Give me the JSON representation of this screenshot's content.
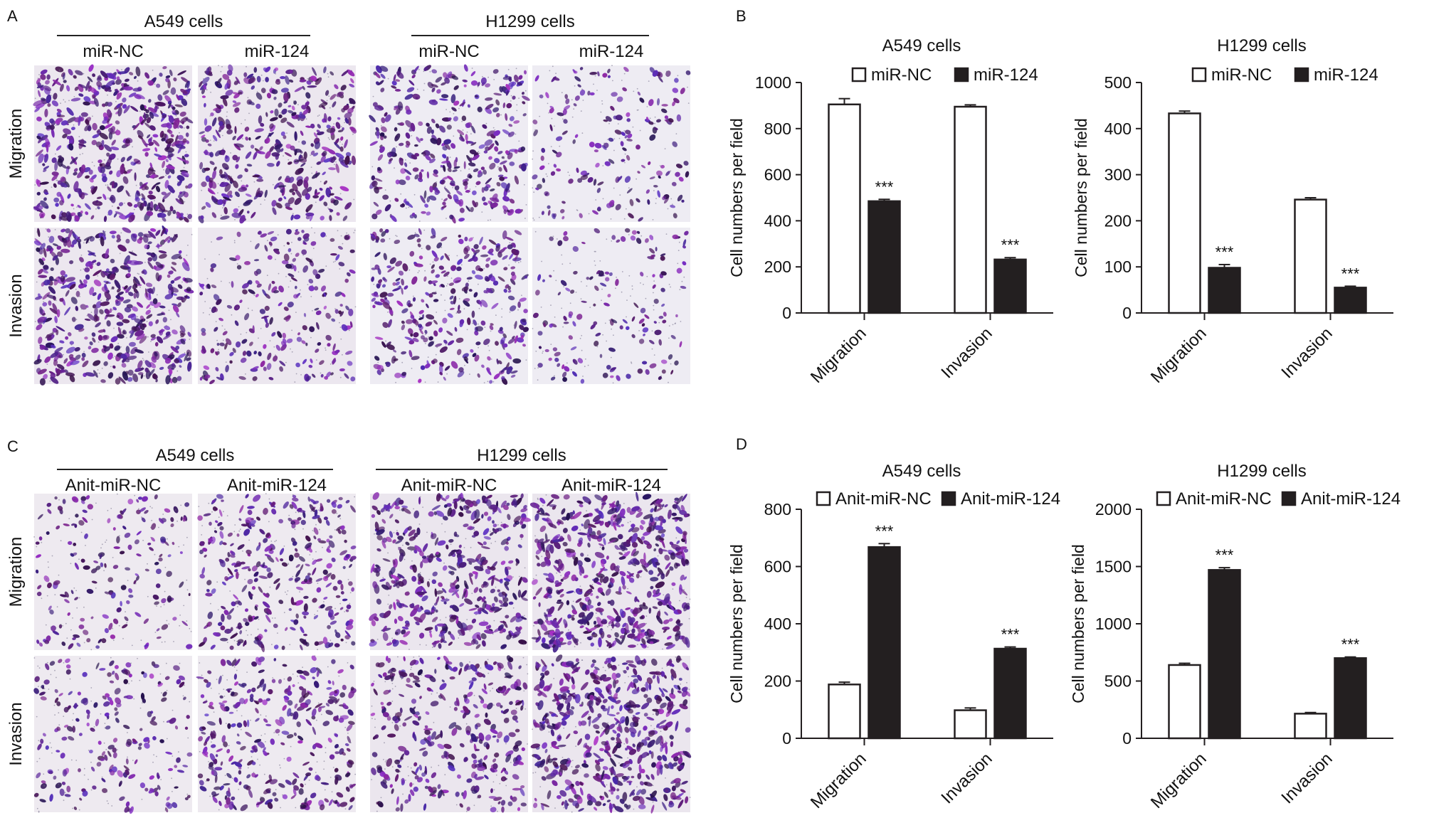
{
  "micro_panels": [
    {
      "letter": "A",
      "groups": [
        {
          "title": "A549 cells",
          "conditions": [
            "miR-NC",
            "miR-124"
          ]
        },
        {
          "title": "H1299 cells",
          "conditions": [
            "miR-NC",
            "miR-124"
          ]
        }
      ],
      "rows": [
        "Migration",
        "Invasion"
      ],
      "stain_density": [
        [
          0.9,
          0.7,
          0.6,
          0.25
        ],
        [
          0.85,
          0.35,
          0.55,
          0.2
        ]
      ]
    },
    {
      "letter": "C",
      "groups": [
        {
          "title": "A549 cells",
          "conditions": [
            "Anit-miR-NC",
            "Anit-miR-124"
          ]
        },
        {
          "title": "H1299 cells",
          "conditions": [
            "Anit-miR-NC",
            "Anit-miR-124"
          ]
        }
      ],
      "rows": [
        "Migration",
        "Invasion"
      ],
      "stain_density": [
        [
          0.25,
          0.55,
          0.75,
          0.95
        ],
        [
          0.3,
          0.5,
          0.55,
          0.85
        ]
      ]
    }
  ],
  "chart_panel_letters": [
    "B",
    "D"
  ],
  "chart_data": [
    {
      "type": "bar",
      "title": "A549 cells",
      "categories": [
        "Migration",
        "Invasion"
      ],
      "series": [
        {
          "name": "miR-NC",
          "values": [
            905,
            895
          ],
          "errors": [
            25,
            8
          ],
          "fill": "#ffffff"
        },
        {
          "name": "miR-124",
          "values": [
            485,
            232
          ],
          "errors": [
            8,
            8
          ],
          "fill": "#231f20"
        }
      ],
      "significance": [
        "***",
        "***"
      ],
      "ylabel": "Cell numbers per field",
      "ylim": [
        0,
        1000
      ],
      "yticks": [
        0,
        200,
        400,
        600,
        800,
        1000
      ],
      "legend": "top"
    },
    {
      "type": "bar",
      "title": "H1299 cells",
      "categories": [
        "Migration",
        "Invasion"
      ],
      "series": [
        {
          "name": "miR-NC",
          "values": [
            433,
            246
          ],
          "errors": [
            5,
            4
          ],
          "fill": "#ffffff"
        },
        {
          "name": "miR-124",
          "values": [
            98,
            55
          ],
          "errors": [
            7,
            3
          ],
          "fill": "#231f20"
        }
      ],
      "significance": [
        "***",
        "***"
      ],
      "ylabel": "Cell numbers per field",
      "ylim": [
        0,
        500
      ],
      "yticks": [
        0,
        100,
        200,
        300,
        400,
        500
      ],
      "legend": "top"
    },
    {
      "type": "bar",
      "title": "A549 cells",
      "categories": [
        "Migration",
        "Invasion"
      ],
      "series": [
        {
          "name": "Anit-miR-NC",
          "values": [
            188,
            98
          ],
          "errors": [
            8,
            8
          ],
          "fill": "#ffffff"
        },
        {
          "name": "Anit-miR-124",
          "values": [
            668,
            313
          ],
          "errors": [
            12,
            6
          ],
          "fill": "#231f20"
        }
      ],
      "significance": [
        "***",
        "***"
      ],
      "ylabel": "Cell numbers per field",
      "ylim": [
        0,
        800
      ],
      "yticks": [
        0,
        200,
        400,
        600,
        800
      ],
      "legend": "top"
    },
    {
      "type": "bar",
      "title": "H1299 cells",
      "categories": [
        "Migration",
        "Invasion"
      ],
      "series": [
        {
          "name": "Anit-miR-NC",
          "values": [
            640,
            215
          ],
          "errors": [
            15,
            10
          ],
          "fill": "#ffffff"
        },
        {
          "name": "Anit-miR-124",
          "values": [
            1470,
            700
          ],
          "errors": [
            20,
            10
          ],
          "fill": "#231f20"
        }
      ],
      "significance": [
        "***",
        "***"
      ],
      "ylabel": "Cell numbers per field",
      "ylim": [
        0,
        2000
      ],
      "yticks": [
        0,
        500,
        1000,
        1500,
        2000
      ],
      "legend": "top"
    }
  ]
}
